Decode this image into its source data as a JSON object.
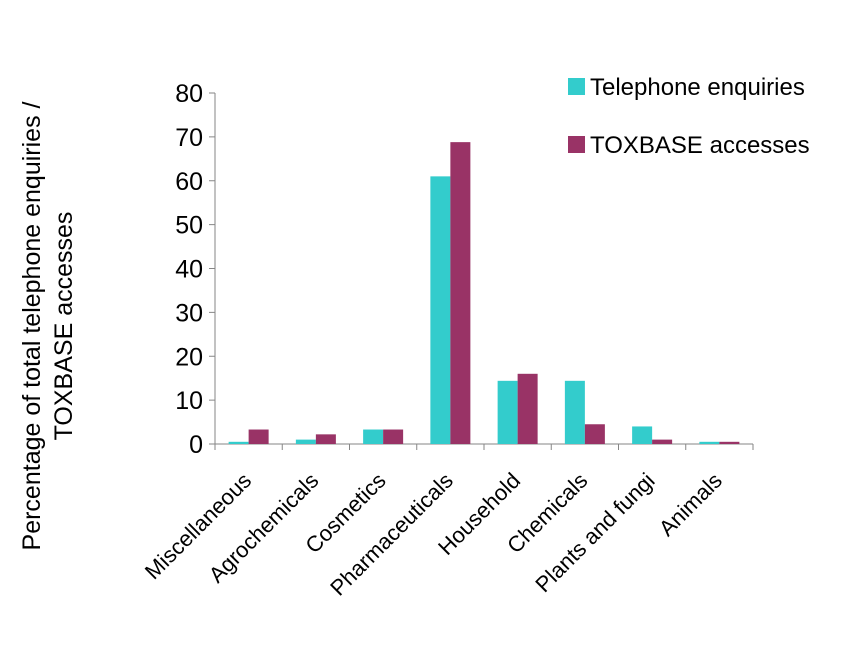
{
  "chart_data": {
    "type": "bar",
    "title": "",
    "ylabel_line1": "Percentage of total telephone enquiries /",
    "ylabel_line2": "TOXBASE accesses",
    "xlabel": "",
    "ylim": [
      0,
      80
    ],
    "yticks": [
      "0",
      "10",
      "20",
      "30",
      "40",
      "50",
      "60",
      "70",
      "80"
    ],
    "grid": false,
    "legend_position": "top-right",
    "categories": [
      "Miscellaneous",
      "Agrochemicals",
      "Cosmetics",
      "Pharmaceuticals",
      "Household",
      "Chemicals",
      "Plants and fungi",
      "Animals"
    ],
    "series": [
      {
        "name": "Telephone enquiries",
        "color": "#33CCCC",
        "values": [
          0.5,
          1,
          3.3,
          61,
          14.4,
          14.4,
          4,
          0.5
        ]
      },
      {
        "name": "TOXBASE accesses",
        "color": "#993366",
        "values": [
          3.3,
          2.2,
          3.3,
          68.8,
          16,
          4.5,
          1,
          0.5
        ]
      }
    ]
  }
}
